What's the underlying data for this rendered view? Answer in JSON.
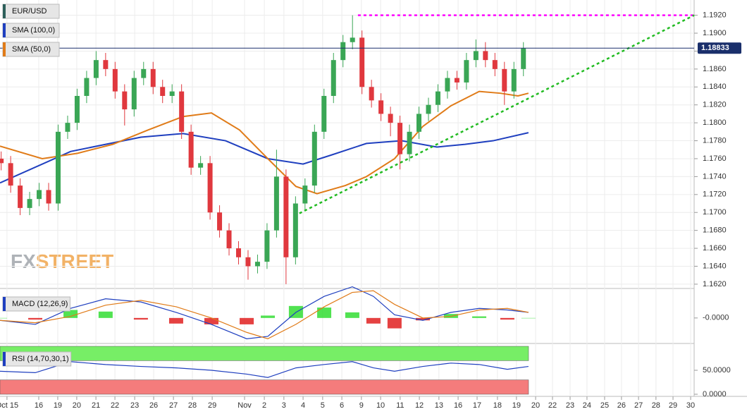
{
  "logo": [
    "FX",
    "STREET"
  ],
  "chart_data": [
    {
      "type": "candlestick",
      "title": "EUR/USD",
      "title_color": "#2d5f5a",
      "grid": true,
      "xlim": [
        -0.36,
        35.46
      ],
      "xticks": [
        {
          "value": 0.0,
          "label": "Oct 15"
        },
        {
          "value": 1.64,
          "label": "16"
        },
        {
          "value": 2.62,
          "label": "19"
        },
        {
          "value": 3.6,
          "label": "20"
        },
        {
          "value": 4.59,
          "label": "21"
        },
        {
          "value": 5.57,
          "label": "22"
        },
        {
          "value": 6.59,
          "label": "23"
        },
        {
          "value": 7.57,
          "label": "26"
        },
        {
          "value": 8.59,
          "label": "27"
        },
        {
          "value": 9.57,
          "label": "28"
        },
        {
          "value": 10.59,
          "label": "29"
        },
        {
          "value": 12.26,
          "label": "Nov"
        },
        {
          "value": 13.28,
          "label": "2"
        },
        {
          "value": 14.29,
          "label": "3"
        },
        {
          "value": 15.28,
          "label": "4"
        },
        {
          "value": 16.29,
          "label": "5"
        },
        {
          "value": 17.28,
          "label": "6"
        },
        {
          "value": 18.29,
          "label": "9"
        },
        {
          "value": 19.28,
          "label": "10"
        },
        {
          "value": 20.29,
          "label": "11"
        },
        {
          "value": 21.28,
          "label": "12"
        },
        {
          "value": 22.29,
          "label": "13"
        },
        {
          "value": 23.28,
          "label": "16"
        },
        {
          "value": 24.26,
          "label": "17"
        },
        {
          "value": 25.31,
          "label": "18"
        },
        {
          "value": 26.29,
          "label": "19"
        },
        {
          "value": 27.28,
          "label": "20"
        },
        {
          "value": 28.15,
          "label": "22"
        },
        {
          "value": 29.06,
          "label": "23"
        },
        {
          "value": 29.93,
          "label": "24"
        },
        {
          "value": 30.84,
          "label": "25"
        },
        {
          "value": 31.71,
          "label": "26"
        },
        {
          "value": 32.59,
          "label": "27"
        },
        {
          "value": 33.49,
          "label": "28"
        },
        {
          "value": 34.37,
          "label": "29"
        },
        {
          "value": 35.28,
          "label": "30"
        }
      ],
      "ylim": [
        1.1616,
        1.1937
      ],
      "yticks": [
        {
          "value": 1.162,
          "label": "1.1620"
        },
        {
          "value": 1.164,
          "label": "1.1640"
        },
        {
          "value": 1.166,
          "label": "1.1660"
        },
        {
          "value": 1.168,
          "label": "1.1680"
        },
        {
          "value": 1.17,
          "label": "1.1700"
        },
        {
          "value": 1.172,
          "label": "1.1720"
        },
        {
          "value": 1.174,
          "label": "1.1740"
        },
        {
          "value": 1.176,
          "label": "1.1760"
        },
        {
          "value": 1.178,
          "label": "1.1780"
        },
        {
          "value": 1.18,
          "label": "1.1800"
        },
        {
          "value": 1.182,
          "label": "1.1820"
        },
        {
          "value": 1.184,
          "label": "1.1840"
        },
        {
          "value": 1.186,
          "label": "1.1860"
        },
        {
          "value": 1.188,
          "label": "1.1880"
        },
        {
          "value": 1.19,
          "label": "1.1900"
        },
        {
          "value": 1.192,
          "label": "1.1920"
        }
      ],
      "up_color": "#3aa655",
      "down_color": "#e0383e",
      "candles": {
        "x": [
          -0.3,
          0.19,
          0.68,
          1.17,
          1.66,
          2.15,
          2.64,
          3.13,
          3.62,
          4.11,
          4.6,
          5.09,
          5.58,
          6.07,
          6.56,
          7.05,
          7.54,
          8.03,
          8.52,
          9.01,
          9.5,
          9.99,
          10.48,
          10.97,
          11.46,
          11.95,
          12.44,
          12.93,
          13.42,
          13.91,
          14.4,
          14.89,
          15.38,
          15.87,
          16.36,
          16.85,
          17.34,
          17.83,
          18.32,
          18.81,
          19.3,
          19.79,
          20.28,
          20.77,
          21.26,
          21.75,
          22.24,
          22.73,
          23.22,
          23.71,
          24.2,
          24.69,
          25.18,
          25.67,
          26.16,
          26.65
        ],
        "open": [
          1.176,
          1.1755,
          1.173,
          1.1705,
          1.1715,
          1.1725,
          1.171,
          1.179,
          1.18,
          1.183,
          1.185,
          1.187,
          1.186,
          1.1835,
          1.1815,
          1.185,
          1.186,
          1.184,
          1.183,
          1.1835,
          1.179,
          1.175,
          1.1755,
          1.17,
          1.168,
          1.166,
          1.165,
          1.164,
          1.1645,
          1.168,
          1.174,
          1.165,
          1.171,
          1.173,
          1.179,
          1.183,
          1.187,
          1.189,
          1.1895,
          1.184,
          1.1825,
          1.181,
          1.18,
          1.1765,
          1.179,
          1.181,
          1.182,
          1.1835,
          1.185,
          1.1845,
          1.187,
          1.188,
          1.187,
          1.186,
          1.1835,
          1.186
        ],
        "high": [
          1.1768,
          1.1763,
          1.1738,
          1.1723,
          1.1733,
          1.1733,
          1.1798,
          1.1808,
          1.1838,
          1.1858,
          1.188,
          1.1878,
          1.1868,
          1.1843,
          1.1858,
          1.1868,
          1.1868,
          1.1848,
          1.1843,
          1.1843,
          1.1798,
          1.1763,
          1.1763,
          1.1708,
          1.1688,
          1.1668,
          1.1658,
          1.1653,
          1.1688,
          1.177,
          1.1748,
          1.1718,
          1.1738,
          1.1798,
          1.1838,
          1.1878,
          1.1898,
          1.192,
          1.1903,
          1.1848,
          1.1833,
          1.1818,
          1.1808,
          1.1798,
          1.1818,
          1.1828,
          1.1843,
          1.1858,
          1.1858,
          1.1878,
          1.1893,
          1.189,
          1.1878,
          1.1868,
          1.1868,
          1.189
        ],
        "low": [
          1.1747,
          1.1722,
          1.1697,
          1.1697,
          1.1707,
          1.1702,
          1.1702,
          1.1782,
          1.1792,
          1.1822,
          1.1842,
          1.1852,
          1.1827,
          1.1797,
          1.1807,
          1.1842,
          1.1832,
          1.1822,
          1.1822,
          1.1782,
          1.1742,
          1.1742,
          1.1692,
          1.1672,
          1.1652,
          1.1642,
          1.1625,
          1.1632,
          1.1637,
          1.1672,
          1.162,
          1.1642,
          1.1702,
          1.1722,
          1.1782,
          1.1822,
          1.1862,
          1.1882,
          1.1832,
          1.1817,
          1.1802,
          1.1785,
          1.1748,
          1.1757,
          1.1782,
          1.1802,
          1.1812,
          1.1827,
          1.1837,
          1.1837,
          1.1862,
          1.1862,
          1.1852,
          1.182,
          1.1827,
          1.1852
        ],
        "close": [
          1.1755,
          1.173,
          1.1705,
          1.1715,
          1.1725,
          1.171,
          1.179,
          1.18,
          1.183,
          1.185,
          1.187,
          1.186,
          1.1835,
          1.1815,
          1.185,
          1.186,
          1.184,
          1.183,
          1.1835,
          1.179,
          1.175,
          1.1755,
          1.17,
          1.168,
          1.166,
          1.165,
          1.164,
          1.1645,
          1.168,
          1.174,
          1.165,
          1.171,
          1.173,
          1.179,
          1.183,
          1.187,
          1.189,
          1.1895,
          1.184,
          1.1825,
          1.181,
          1.18,
          1.1765,
          1.179,
          1.181,
          1.182,
          1.1835,
          1.185,
          1.1845,
          1.187,
          1.188,
          1.187,
          1.186,
          1.1835,
          1.186,
          1.1883
        ]
      },
      "series": [
        {
          "name": "SMA (100,0)",
          "color": "#1f3fbf",
          "x": [
            -0.36,
            3.28,
            6.91,
            9.09,
            11.28,
            13.46,
            15.28,
            16.73,
            18.55,
            20.37,
            22.19,
            23.64,
            25.09,
            26.91
          ],
          "values": [
            1.1733,
            1.1768,
            1.1784,
            1.1788,
            1.178,
            1.176,
            1.1754,
            1.1764,
            1.1777,
            1.178,
            1.1773,
            1.1776,
            1.178,
            1.1789
          ]
        },
        {
          "name": "SMA (50,0)",
          "color": "#e07b18",
          "x": [
            -0.36,
            1.82,
            3.64,
            5.46,
            7.28,
            9.09,
            10.55,
            12.0,
            13.46,
            14.91,
            16.0,
            17.46,
            18.55,
            20.0,
            21.46,
            22.91,
            24.37,
            25.46,
            26.37,
            26.91
          ],
          "values": [
            1.1774,
            1.176,
            1.1766,
            1.1776,
            1.1792,
            1.1807,
            1.1811,
            1.1792,
            1.176,
            1.1729,
            1.1721,
            1.173,
            1.174,
            1.176,
            1.1796,
            1.1819,
            1.1835,
            1.1833,
            1.183,
            1.1833
          ]
        }
      ],
      "last_price": {
        "value": 1.18833,
        "label": "1.18833",
        "color": "#1a2f6b"
      },
      "lines": [
        {
          "color": "#ff00ff",
          "x": [
            18.11,
            35.46
          ],
          "values": [
            1.192,
            1.192
          ]
        },
        {
          "color": "#22bb22",
          "x": [
            15.09,
            35.46
          ],
          "values": [
            1.1699,
            1.192
          ]
        }
      ]
    },
    {
      "type": "macd",
      "title": "MACD (12,26,9)",
      "x": [
        -0.36,
        1.46,
        3.28,
        5.09,
        6.91,
        8.73,
        10.55,
        12.37,
        13.46,
        14.91,
        16.37,
        17.82,
        18.91,
        20.0,
        21.46,
        22.91,
        24.37,
        25.82,
        26.91
      ],
      "series": [
        {
          "color": "#1f3fbf",
          "values": [
            -0.0003,
            -0.0008,
            0.0012,
            0.0024,
            0.002,
            0.0007,
            -0.0008,
            -0.0026,
            -0.0023,
            0.0007,
            0.0027,
            0.0039,
            0.0027,
            0.0004,
            -0.0003,
            0.0007,
            0.0012,
            0.001,
            0.0007
          ]
        },
        {
          "color": "#e07b18",
          "values": [
            -0.0003,
            -0.0006,
            0.0002,
            0.0016,
            0.0022,
            0.0014,
            0,
            -0.0018,
            -0.0026,
            -0.0008,
            0.0014,
            0.0032,
            0.0034,
            0.0017,
            0,
            0.0002,
            0.001,
            0.0012,
            0.0007
          ]
        }
      ],
      "histogram": {
        "up_color": "#33dd33",
        "down_color": "#e02020",
        "values": [
          0,
          -0.0002,
          0.001,
          0.0008,
          -0.0002,
          -0.0007,
          -0.0008,
          -0.0008,
          0.0003,
          0.0015,
          0.0013,
          0.0007,
          -0.0007,
          -0.0013,
          -0.0003,
          0.0005,
          0.0002,
          -0.0002,
          0
        ]
      },
      "ylim": [
        -0.0031,
        0.0036
      ],
      "yticks": [
        {
          "value": 0,
          "label": "-0.0000"
        }
      ]
    },
    {
      "type": "rsi",
      "title": "RSI (14,70,30,1)",
      "color": "#1f3fbf",
      "x": [
        -0.36,
        1.46,
        3.28,
        5.09,
        6.91,
        8.73,
        10.55,
        12.37,
        13.46,
        14.91,
        16.37,
        17.82,
        18.91,
        20.0,
        21.46,
        22.91,
        24.37,
        25.82,
        26.91
      ],
      "values": [
        48,
        45,
        68,
        62,
        58,
        55,
        50,
        42,
        35,
        55,
        62,
        68,
        55,
        48,
        58,
        65,
        62,
        52,
        58
      ],
      "bands": [
        {
          "from": 70,
          "to": 100,
          "color": "#77ee66"
        },
        {
          "from": 0,
          "to": 30,
          "color": "#f47c7c"
        }
      ],
      "ylim": [
        0,
        100
      ],
      "yticks": [
        {
          "value": 50,
          "label": "50.0000"
        },
        {
          "value": 0,
          "label": "0.0000"
        }
      ]
    }
  ]
}
